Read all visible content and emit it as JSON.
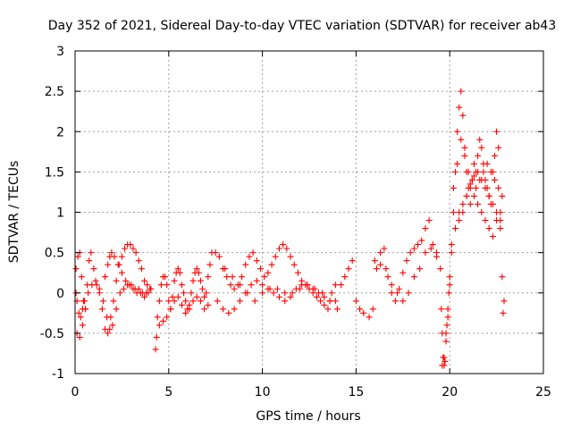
{
  "chart_data": {
    "type": "scatter",
    "title": "Day 352 of 2021, Sidereal Day-to-day VTEC variation (SDTVAR) for receiver ab43",
    "xlabel": "GPS time / hours",
    "ylabel": "SDTVAR / TECUs",
    "xlim": [
      0,
      25
    ],
    "ylim": [
      -1,
      3
    ],
    "xticks": [
      0,
      5,
      10,
      15,
      20,
      25
    ],
    "xtick_labels": [
      "0",
      "5",
      "10",
      "15",
      "20",
      "25"
    ],
    "yticks": [
      -1,
      -0.5,
      0,
      0.5,
      1,
      1.5,
      2,
      2.5,
      3
    ],
    "ytick_labels": [
      "-1",
      "-0.5",
      "0",
      "0.5",
      "1",
      "1.5",
      "2",
      "2.5",
      "3"
    ],
    "grid": true,
    "marker": "+",
    "color": "#ff0000",
    "series": [
      {
        "name": "SDTVAR",
        "x": [
          0.05,
          0.15,
          0.25,
          0.35,
          0.45,
          0.55,
          0.65,
          0.75,
          0.85,
          1.0,
          1.15,
          1.3,
          1.45,
          1.6,
          1.75,
          1.9,
          2.05,
          2.2,
          2.35,
          2.5,
          2.65,
          2.8,
          2.95,
          3.1,
          3.25,
          3.4,
          3.55,
          3.7,
          3.85,
          4.0,
          0.1,
          0.25,
          0.4,
          0.55,
          0.7,
          0.9,
          1.1,
          1.3,
          1.5,
          1.7,
          1.85,
          2.0,
          2.2,
          2.4,
          2.6,
          2.8,
          3.0,
          3.2,
          3.4,
          3.6,
          3.8,
          0.05,
          0.1,
          0.2,
          0.3,
          0.4,
          0.5,
          1.6,
          1.75,
          1.85,
          1.95,
          2.1,
          2.3,
          2.5,
          2.7,
          2.9,
          3.1,
          3.3,
          3.5,
          3.7,
          3.9,
          4.05,
          4.3,
          4.35,
          4.4,
          4.5,
          4.6,
          4.7,
          4.8,
          4.9,
          5.0,
          5.1,
          5.2,
          5.3,
          5.4,
          5.5,
          5.6,
          5.7,
          5.8,
          5.9,
          6.0,
          6.1,
          6.2,
          6.3,
          6.4,
          6.5,
          6.6,
          6.7,
          6.8,
          6.9,
          7.0,
          7.1,
          7.2,
          7.3,
          4.5,
          4.7,
          4.9,
          5.1,
          5.3,
          5.5,
          5.7,
          5.9,
          6.1,
          6.3,
          6.5,
          6.7,
          6.9,
          7.1,
          7.5,
          7.7,
          7.9,
          8.1,
          8.3,
          8.5,
          8.7,
          8.9,
          9.1,
          9.3,
          9.5,
          9.7,
          9.9,
          10.1,
          10.3,
          10.5,
          10.7,
          10.9,
          11.1,
          11.3,
          11.5,
          11.7,
          11.9,
          12.1,
          12.3,
          12.5,
          12.7,
          12.9,
          13.1,
          13.3,
          13.5,
          13.7,
          13.9,
          7.6,
          7.9,
          8.2,
          8.5,
          8.8,
          9.1,
          9.4,
          9.7,
          10.0,
          10.3,
          10.6,
          10.9,
          11.2,
          11.5,
          11.8,
          12.1,
          12.4,
          12.7,
          13.0,
          13.3,
          13.6,
          13.9,
          8.0,
          8.4,
          8.8,
          9.2,
          9.6,
          10.0,
          10.4,
          10.8,
          11.2,
          11.6,
          12.0,
          12.4,
          12.8,
          13.2,
          13.6,
          14.0,
          14.2,
          14.4,
          14.6,
          14.8,
          15.0,
          15.2,
          15.4,
          15.7,
          15.9,
          16.1,
          16.3,
          16.5,
          16.7,
          16.9,
          17.1,
          17.3,
          17.5,
          17.7,
          17.9,
          18.1,
          18.3,
          18.5,
          18.7,
          18.9,
          19.1,
          19.3,
          19.5,
          16.0,
          16.3,
          16.6,
          16.9,
          17.2,
          17.5,
          17.8,
          18.1,
          18.4,
          18.7,
          19.0,
          19.3,
          19.55,
          19.6,
          19.65,
          19.7,
          19.75,
          19.8,
          19.85,
          19.9,
          19.95,
          20.0,
          20.1,
          20.2,
          20.3,
          20.4,
          20.5,
          20.6,
          20.7,
          20.8,
          20.9,
          21.0,
          21.1,
          21.2,
          21.3,
          21.4,
          21.5,
          21.6,
          21.7,
          21.8,
          21.9,
          22.0,
          22.1,
          22.2,
          22.3,
          22.4,
          22.5,
          22.6,
          22.7,
          22.8,
          22.9,
          20.2,
          20.4,
          20.6,
          20.8,
          21.0,
          21.2,
          21.4,
          21.6,
          21.8,
          22.0,
          22.2,
          22.4,
          22.6,
          22.8,
          20.5,
          20.7,
          20.9,
          21.1,
          21.3,
          21.5,
          21.7,
          21.9,
          22.1,
          22.3,
          22.5,
          22.7,
          19.6,
          19.7,
          19.8,
          19.9,
          20.0,
          20.1,
          20.3,
          20.5,
          20.7,
          20.9,
          21.1,
          21.3,
          21.5,
          21.7,
          21.9,
          22.1,
          22.3,
          22.5,
          22.7,
          22.85
        ],
        "y": [
          0.3,
          0.45,
          0.5,
          0.2,
          -0.1,
          -0.2,
          0.1,
          0.4,
          0.5,
          0.3,
          0.1,
          0.0,
          -0.2,
          -0.45,
          -0.5,
          -0.3,
          -0.1,
          0.15,
          0.35,
          0.45,
          0.55,
          0.6,
          0.6,
          0.55,
          0.5,
          0.4,
          0.3,
          0.15,
          0.1,
          0.05,
          -0.5,
          -0.55,
          -0.4,
          -0.2,
          0.0,
          0.1,
          0.15,
          0.05,
          -0.1,
          -0.3,
          -0.45,
          -0.4,
          -0.2,
          0.0,
          0.05,
          0.1,
          0.1,
          0.05,
          0.05,
          0.0,
          0.0,
          0.0,
          -0.1,
          -0.25,
          -0.3,
          -0.2,
          -0.1,
          0.2,
          0.35,
          0.45,
          0.5,
          0.45,
          0.35,
          0.25,
          0.15,
          0.1,
          0.05,
          0.0,
          0.0,
          -0.05,
          0.0,
          0.05,
          -0.7,
          -0.55,
          -0.3,
          -0.1,
          0.1,
          0.2,
          0.2,
          0.1,
          -0.1,
          -0.2,
          -0.05,
          0.15,
          0.25,
          0.3,
          0.25,
          0.1,
          0.0,
          -0.1,
          -0.2,
          -0.15,
          0.0,
          0.15,
          0.25,
          0.3,
          0.25,
          0.15,
          0.05,
          -0.05,
          0.0,
          0.2,
          0.35,
          0.5,
          -0.4,
          -0.35,
          -0.3,
          -0.2,
          -0.1,
          -0.05,
          -0.15,
          -0.25,
          -0.2,
          -0.1,
          -0.05,
          -0.1,
          -0.2,
          -0.15,
          0.5,
          0.45,
          0.3,
          0.2,
          0.1,
          0.05,
          0.1,
          0.2,
          0.35,
          0.45,
          0.5,
          0.4,
          0.3,
          0.2,
          0.25,
          0.35,
          0.45,
          0.55,
          0.6,
          0.55,
          0.45,
          0.35,
          0.25,
          0.15,
          0.1,
          0.05,
          0.0,
          -0.05,
          -0.1,
          -0.15,
          -0.2,
          0.0,
          0.1,
          -0.1,
          -0.2,
          -0.25,
          -0.2,
          -0.1,
          0.0,
          0.1,
          0.15,
          0.1,
          0.05,
          0.0,
          -0.05,
          -0.1,
          -0.05,
          0.05,
          0.1,
          0.1,
          0.05,
          0.0,
          -0.05,
          -0.1,
          -0.1,
          0.3,
          0.2,
          0.1,
          0.0,
          -0.1,
          0.0,
          0.05,
          0.05,
          0.0,
          0.0,
          0.05,
          0.1,
          0.05,
          0.0,
          -0.1,
          -0.2,
          0.1,
          0.2,
          0.3,
          0.4,
          -0.1,
          -0.2,
          -0.25,
          -0.3,
          -0.2,
          0.3,
          0.5,
          0.55,
          0.2,
          0.0,
          -0.1,
          0.05,
          0.25,
          0.4,
          0.5,
          0.55,
          0.6,
          0.65,
          0.8,
          0.9,
          0.6,
          0.5,
          0.3,
          0.4,
          0.35,
          0.3,
          0.1,
          0.0,
          -0.1,
          0.0,
          0.2,
          0.3,
          0.5,
          0.55,
          0.45,
          -0.2,
          -0.5,
          -0.8,
          -0.9,
          -0.85,
          -0.6,
          -0.4,
          -0.2,
          0.0,
          0.2,
          0.5,
          1.0,
          1.5,
          2.0,
          2.3,
          2.5,
          2.2,
          1.8,
          1.5,
          1.3,
          1.1,
          1.4,
          1.6,
          1.5,
          1.7,
          1.9,
          1.8,
          1.6,
          1.4,
          1.3,
          1.2,
          1.1,
          1.5,
          1.7,
          2.0,
          1.8,
          0.8,
          0.2,
          -0.1,
          1.3,
          1.6,
          1.9,
          1.7,
          1.5,
          1.4,
          1.3,
          1.4,
          1.5,
          1.6,
          1.5,
          1.4,
          1.3,
          1.2,
          0.9,
          1.0,
          1.2,
          1.35,
          1.45,
          1.5,
          1.4,
          1.3,
          1.2,
          1.1,
          1.0,
          0.9,
          -0.9,
          -0.8,
          -0.5,
          -0.3,
          0.1,
          0.6,
          0.8,
          1.0,
          1.1,
          1.2,
          1.3,
          1.2,
          1.1,
          1.0,
          0.9,
          0.8,
          0.7,
          0.9,
          1.0,
          -0.25
        ]
      }
    ]
  }
}
